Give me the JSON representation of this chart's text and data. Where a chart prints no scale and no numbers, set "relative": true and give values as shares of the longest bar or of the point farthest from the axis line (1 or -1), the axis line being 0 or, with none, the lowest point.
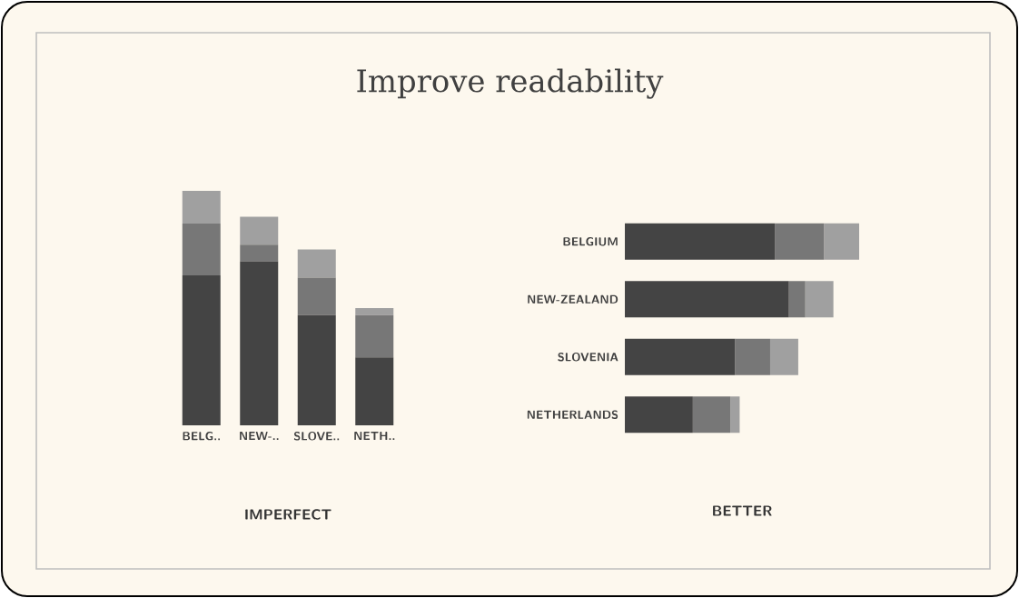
{
  "chart_data": [
    {
      "type": "bar",
      "title": "Improve readability",
      "xlabel": "IMPERFECT",
      "stacked": true,
      "relative": true,
      "categories": [
        "BELG..",
        "NEW-..",
        "SLOVE..",
        "NETH.."
      ],
      "series": [
        {
          "color": "#444444",
          "values": [
            0.64,
            0.7,
            0.47,
            0.29
          ]
        },
        {
          "color": "#777777",
          "values": [
            0.22,
            0.07,
            0.16,
            0.18
          ]
        },
        {
          "color": "#a0a0a0",
          "values": [
            0.14,
            0.12,
            0.12,
            0.03
          ]
        }
      ]
    },
    {
      "type": "bar",
      "xlabel": "BETTER",
      "stacked": true,
      "relative": true,
      "orientation": "horizontal",
      "categories": [
        "BELGIUM",
        "NEW-ZEALAND",
        "SLOVENIA",
        "NETHERLANDS"
      ],
      "series": [
        {
          "color": "#444444",
          "values": [
            0.64,
            0.7,
            0.47,
            0.29
          ]
        },
        {
          "color": "#777777",
          "values": [
            0.21,
            0.07,
            0.15,
            0.16
          ]
        },
        {
          "color": "#a0a0a0",
          "values": [
            0.15,
            0.12,
            0.12,
            0.04
          ]
        }
      ]
    }
  ]
}
